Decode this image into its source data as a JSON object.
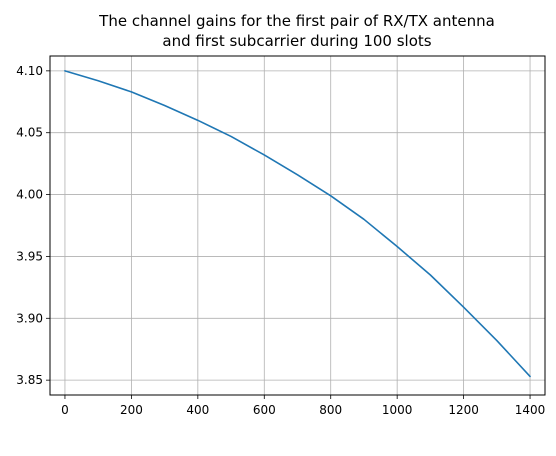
{
  "chart_data": {
    "type": "line",
    "title_lines": [
      "The channel gains for the first pair of RX/TX antenna",
      "and first subcarrier during 100 slots"
    ],
    "xlabel": "",
    "ylabel": "",
    "xlim": [
      -45,
      1445
    ],
    "ylim": [
      3.838,
      4.112
    ],
    "grid": true,
    "xticks": [
      0,
      200,
      400,
      600,
      800,
      1000,
      1200,
      1400
    ],
    "xtick_labels": [
      "0",
      "200",
      "400",
      "600",
      "800",
      "1000",
      "1200",
      "1400"
    ],
    "yticks": [
      3.85,
      3.9,
      3.95,
      4.0,
      4.05,
      4.1
    ],
    "ytick_labels": [
      "3.85",
      "3.90",
      "3.95",
      "4.00",
      "4.05",
      "4.10"
    ],
    "series": [
      {
        "color": "#1f77b4",
        "x": [
          0,
          100,
          200,
          300,
          400,
          500,
          600,
          700,
          800,
          900,
          1000,
          1100,
          1200,
          1300,
          1400
        ],
        "y": [
          4.1,
          4.092,
          4.083,
          4.072,
          4.06,
          4.047,
          4.032,
          4.016,
          3.999,
          3.98,
          3.958,
          3.935,
          3.909,
          3.882,
          3.853
        ]
      }
    ]
  }
}
